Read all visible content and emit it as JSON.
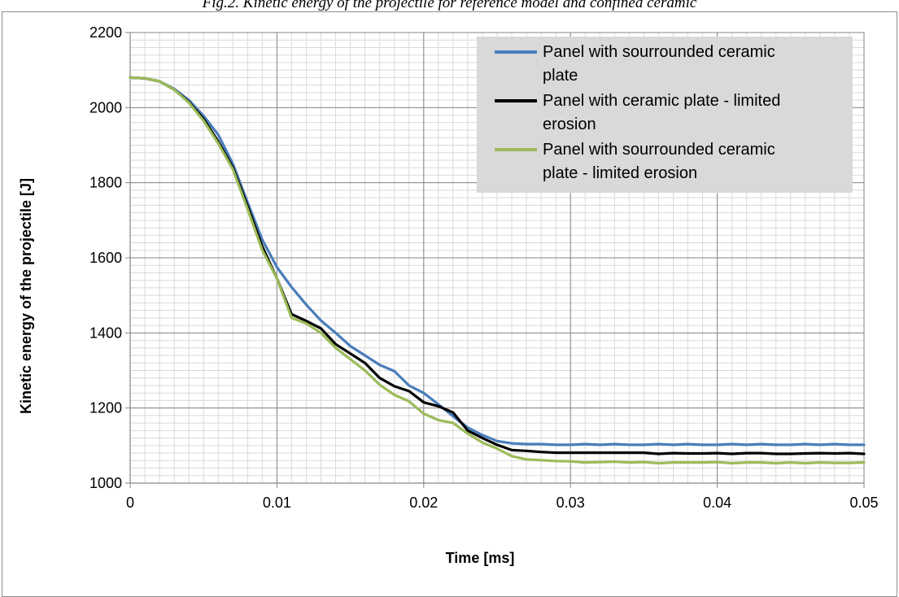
{
  "figure": {
    "caption": "Fig.2. Kinetic energy of the projectile for reference model and confined ceramic"
  },
  "chart_data": {
    "type": "line",
    "xlabel": "Time [ms]",
    "ylabel": "Kinetic energy of the projectile [J]",
    "xlim": [
      0,
      0.05
    ],
    "ylim": [
      1000,
      2200
    ],
    "x_ticks": [
      0,
      0.01,
      0.02,
      0.03,
      0.04,
      0.05
    ],
    "x_tick_labels": [
      "0",
      "0.01",
      "0.02",
      "0.03",
      "0.04",
      "0.05"
    ],
    "y_ticks": [
      1000,
      1200,
      1400,
      1600,
      1800,
      2000,
      2200
    ],
    "y_tick_labels": [
      "1000",
      "1200",
      "1400",
      "1600",
      "1800",
      "2000",
      "2200"
    ],
    "grid": true,
    "legend_position": "top-right",
    "x": [
      0,
      0.001,
      0.002,
      0.003,
      0.004,
      0.005,
      0.006,
      0.007,
      0.008,
      0.009,
      0.01,
      0.011,
      0.012,
      0.013,
      0.014,
      0.015,
      0.016,
      0.017,
      0.018,
      0.019,
      0.02,
      0.021,
      0.022,
      0.023,
      0.024,
      0.025,
      0.026,
      0.027,
      0.028,
      0.029,
      0.03,
      0.031,
      0.032,
      0.033,
      0.034,
      0.035,
      0.036,
      0.037,
      0.038,
      0.039,
      0.04,
      0.041,
      0.042,
      0.043,
      0.044,
      0.045,
      0.046,
      0.047,
      0.048,
      0.049,
      0.05
    ],
    "series": [
      {
        "name": "Panel with sourrounded ceramic plate",
        "legend_lines": [
          "Panel with sourrounded ceramic",
          "plate"
        ],
        "color": "#4a7ebb",
        "values": [
          2080,
          2078,
          2070,
          2050,
          2020,
          1978,
          1928,
          1850,
          1748,
          1648,
          1575,
          1522,
          1475,
          1433,
          1400,
          1365,
          1340,
          1315,
          1298,
          1260,
          1240,
          1210,
          1178,
          1148,
          1128,
          1112,
          1106,
          1104,
          1104,
          1102,
          1102,
          1104,
          1102,
          1104,
          1102,
          1102,
          1104,
          1102,
          1104,
          1102,
          1102,
          1104,
          1102,
          1104,
          1102,
          1102,
          1104,
          1102,
          1104,
          1102,
          1102
        ]
      },
      {
        "name": "Panel with ceramic plate - limited erosion",
        "legend_lines": [
          "Panel with ceramic plate - limited",
          "erosion"
        ],
        "color": "#000000",
        "values": [
          2080,
          2078,
          2070,
          2048,
          2015,
          1970,
          1910,
          1840,
          1738,
          1630,
          1545,
          1450,
          1432,
          1412,
          1370,
          1345,
          1320,
          1280,
          1258,
          1245,
          1215,
          1205,
          1188,
          1140,
          1120,
          1102,
          1088,
          1086,
          1083,
          1081,
          1081,
          1081,
          1081,
          1081,
          1081,
          1081,
          1078,
          1080,
          1079,
          1079,
          1080,
          1078,
          1080,
          1080,
          1078,
          1078,
          1079,
          1080,
          1079,
          1080,
          1078
        ]
      },
      {
        "name": "Panel with sourrounded ceramic plate - limited erosion",
        "legend_lines": [
          "Panel with sourrounded ceramic",
          "plate - limited erosion"
        ],
        "color": "#9bbb59",
        "values": [
          2080,
          2078,
          2070,
          2048,
          2013,
          1965,
          1905,
          1835,
          1730,
          1620,
          1545,
          1440,
          1425,
          1400,
          1360,
          1330,
          1300,
          1262,
          1235,
          1218,
          1185,
          1168,
          1160,
          1132,
          1108,
          1092,
          1072,
          1063,
          1061,
          1059,
          1058,
          1055,
          1056,
          1057,
          1055,
          1056,
          1053,
          1055,
          1055,
          1055,
          1056,
          1053,
          1055,
          1055,
          1053,
          1055,
          1053,
          1055,
          1054,
          1054,
          1055
        ]
      }
    ]
  }
}
